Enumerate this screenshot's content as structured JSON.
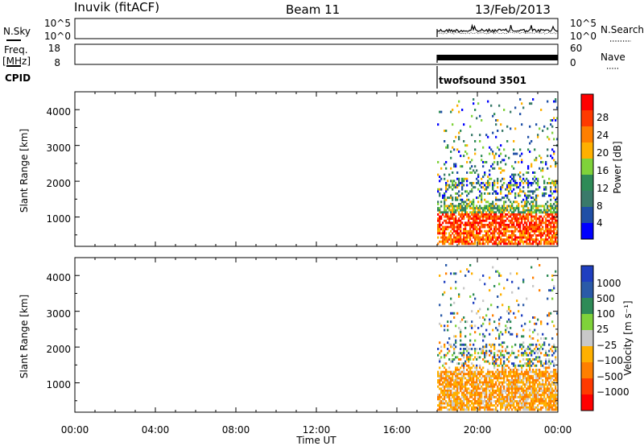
{
  "header": {
    "station": "Inuvik (fitACF)",
    "beam": "Beam 11",
    "date": "13/Feb/2013"
  },
  "nsky_panel": {
    "left_label": "N.Sky",
    "left_ticks": [
      "10^5",
      "10^0"
    ],
    "right_ticks": [
      "10^5",
      "10^0"
    ],
    "right_label": "N.Search"
  },
  "freq_panel": {
    "left_label_1": "Freq.",
    "left_label_2": "[MHz]",
    "left_ticks": [
      "18",
      "8"
    ],
    "right_ticks": [
      "60",
      "0"
    ],
    "right_label": "Nave"
  },
  "cpid": {
    "label": "CPID",
    "program": "twofsound 3501"
  },
  "colors": {
    "power_scale": [
      "#0000ff",
      "#1f4fa6",
      "#3a7a6a",
      "#2e8b57",
      "#7fd23a",
      "#ffb000",
      "#ff7f00",
      "#ff3a00",
      "#ff0000"
    ],
    "velocity_scale": [
      "#1f3fc0",
      "#2a5aa8",
      "#2e8b57",
      "#7fd23a",
      "#c8c8c8",
      "#ffb000",
      "#ff7f00",
      "#ff3a00",
      "#ff0000"
    ]
  },
  "chart_data": [
    {
      "type": "heatmap",
      "panel": "power",
      "ylabel": "Slant Range [km]",
      "yticks": [
        "1000",
        "2000",
        "3000",
        "4000"
      ],
      "ylim": [
        180,
        4500
      ],
      "xlim": [
        "00:00",
        "24:00"
      ],
      "data_start": "18:00",
      "colorbar_label": "Power [dB]",
      "colorbar_ticks": [
        "28",
        "24",
        "20",
        "16",
        "12",
        "8",
        "4"
      ]
    },
    {
      "type": "heatmap",
      "panel": "velocity",
      "ylabel": "Slant Range [km]",
      "yticks": [
        "1000",
        "2000",
        "3000",
        "4000"
      ],
      "ylim": [
        180,
        4500
      ],
      "xlim": [
        "00:00",
        "24:00"
      ],
      "data_start": "18:00",
      "colorbar_label": "Velocity [m s⁻¹]",
      "colorbar_ticks": [
        "1000",
        "500",
        "100",
        "25",
        "−25",
        "−100",
        "−500",
        "−1000"
      ]
    }
  ],
  "xaxis": {
    "ticks": [
      "00:00",
      "04:00",
      "08:00",
      "12:00",
      "16:00",
      "20:00",
      "00:00"
    ],
    "label": "Time UT"
  }
}
